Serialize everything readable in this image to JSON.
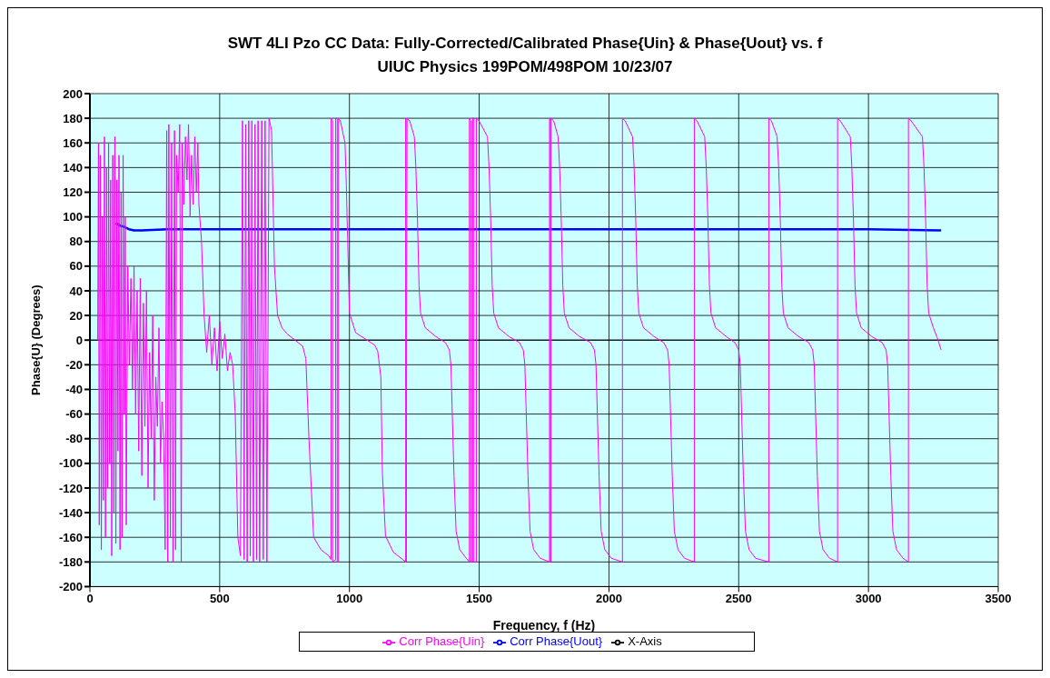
{
  "chart_data": {
    "type": "line",
    "title": "SWT 4LI Pzo CC Data: Fully-Corrected/Calibrated Phase{Uin} & Phase{Uout} vs. f",
    "subtitle": "UIUC Physics 199POM/498POM 10/23/07",
    "xlabel": "Frequency, f (Hz)",
    "ylabel": "Phase{U} (Degrees)",
    "xlim": [
      0,
      3500
    ],
    "ylim": [
      -200,
      200
    ],
    "xticks": [
      0,
      500,
      1000,
      1500,
      2000,
      2500,
      3000,
      3500
    ],
    "yticks": [
      -200,
      -180,
      -160,
      -140,
      -120,
      -100,
      -80,
      -60,
      -40,
      -20,
      0,
      20,
      40,
      60,
      80,
      100,
      120,
      140,
      160,
      180,
      200
    ],
    "grid": true,
    "legend": "bottom",
    "marker": "none",
    "line_style": "solid",
    "series": [
      {
        "name": "X-Axis",
        "color": "#000000",
        "x": [
          0,
          3500
        ],
        "values": [
          0,
          0
        ]
      },
      {
        "name": "Corr Phase{Uout}",
        "color": "#0000ff",
        "x": [
          100,
          115,
          130,
          150,
          170,
          200,
          300,
          500,
          1000,
          1500,
          2000,
          2500,
          2600,
          3000,
          3280
        ],
        "values": [
          95,
          93,
          92,
          90,
          89,
          89,
          90,
          90,
          90,
          90,
          90,
          90,
          90,
          90,
          89
        ]
      },
      {
        "name": "Corr Phase{Uin}",
        "color": "#ff00ff",
        "x": [
          30,
          33,
          36,
          40,
          44,
          48,
          52,
          56,
          60,
          64,
          68,
          72,
          76,
          80,
          84,
          88,
          92,
          96,
          100,
          104,
          108,
          112,
          116,
          120,
          124,
          128,
          132,
          136,
          140,
          146,
          152,
          158,
          164,
          170,
          176,
          182,
          188,
          194,
          200,
          206,
          212,
          218,
          224,
          230,
          236,
          242,
          248,
          254,
          260,
          266,
          272,
          278,
          284,
          290,
          296,
          300,
          304,
          310,
          315,
          320,
          326,
          330,
          334,
          340,
          346,
          352,
          356,
          362,
          368,
          374,
          380,
          386,
          392,
          398,
          404,
          410,
          416,
          420,
          430,
          440,
          450,
          460,
          470,
          480,
          490,
          500,
          510,
          520,
          530,
          540,
          550,
          560,
          570,
          580,
          588,
          594,
          600,
          606,
          612,
          618,
          624,
          630,
          636,
          642,
          648,
          654,
          662,
          668,
          675,
          682,
          690,
          700,
          711,
          723,
          740,
          760,
          790,
          820,
          832,
          844,
          862,
          890,
          920,
          929,
          929,
          935,
          935,
          947,
          947,
          953,
          953,
          958,
          958,
          965,
          983,
          988,
          1000,
          1024,
          1097,
          1109,
          1121,
          1127,
          1139,
          1169,
          1217,
          1217,
          1219,
          1222,
          1232,
          1250,
          1256,
          1262,
          1268,
          1274,
          1292,
          1332,
          1370,
          1385,
          1391,
          1395,
          1403,
          1411,
          1425,
          1450,
          1462,
          1462,
          1468,
          1468,
          1475,
          1475,
          1480,
          1480,
          1489,
          1489,
          1499,
          1532,
          1538,
          1544,
          1550,
          1556,
          1574,
          1614,
          1655,
          1670,
          1676,
          1680,
          1688,
          1696,
          1710,
          1735,
          1771,
          1771,
          1774,
          1774,
          1777,
          1777,
          1787,
          1804,
          1810,
          1816,
          1822,
          1828,
          1846,
          1886,
          1929,
          1944,
          1950,
          1954,
          1962,
          1970,
          1984,
          2009,
          2052,
          2052,
          2062,
          2091,
          2097,
          2103,
          2109,
          2115,
          2133,
          2173,
          2211,
          2226,
          2232,
          2236,
          2244,
          2252,
          2266,
          2291,
          2329,
          2329,
          2339,
          2369,
          2375,
          2381,
          2387,
          2393,
          2411,
          2451,
          2485,
          2500,
          2506,
          2510,
          2518,
          2526,
          2540,
          2565,
          2616,
          2616,
          2626,
          2648,
          2654,
          2660,
          2666,
          2672,
          2690,
          2730,
          2770,
          2785,
          2791,
          2795,
          2803,
          2811,
          2825,
          2850,
          2881,
          2881,
          2891,
          2930,
          2936,
          2942,
          2948,
          2954,
          2972,
          3012,
          3053,
          3068,
          3074,
          3078,
          3086,
          3094,
          3108,
          3133,
          3154,
          3154,
          3164,
          3208,
          3214,
          3220,
          3226,
          3232,
          3250,
          3265,
          3280
        ],
        "values": [
          0,
          160,
          -150,
          150,
          -170,
          100,
          -130,
          165,
          -160,
          140,
          -120,
          160,
          -100,
          130,
          -175,
          150,
          -140,
          165,
          -165,
          130,
          -90,
          150,
          -170,
          120,
          -160,
          150,
          -60,
          100,
          -150,
          60,
          -20,
          50,
          -40,
          60,
          -60,
          40,
          -90,
          50,
          -110,
          30,
          -70,
          40,
          -120,
          -10,
          -80,
          20,
          -130,
          -30,
          -70,
          10,
          -100,
          -50,
          -80,
          -170,
          170,
          -180,
          175,
          -160,
          160,
          -180,
          170,
          -170,
          150,
          120,
          175,
          -180,
          160,
          110,
          165,
          130,
          175,
          100,
          150,
          110,
          165,
          120,
          160,
          110,
          80,
          20,
          -10,
          20,
          -20,
          10,
          -25,
          15,
          -15,
          5,
          -25,
          -10,
          -20,
          -60,
          -160,
          -175,
          178,
          -178,
          175,
          -180,
          178,
          -175,
          178,
          -180,
          175,
          -178,
          178,
          -180,
          178,
          -178,
          178,
          -180,
          180,
          170,
          60,
          20,
          10,
          5,
          0,
          -5,
          -15,
          -80,
          -160,
          -170,
          -175,
          -178,
          180,
          178,
          -180,
          -178,
          180,
          180,
          -180,
          -180,
          180,
          178,
          160,
          126,
          22,
          6,
          -4,
          -9,
          -30,
          -108,
          -159,
          -172,
          -180,
          180,
          -180,
          180,
          178,
          165,
          140,
          100,
          45,
          22,
          10,
          3,
          -2,
          -8,
          -20,
          -50,
          -110,
          -155,
          -170,
          -177,
          -180,
          180,
          178,
          -180,
          -180,
          180,
          180,
          -180,
          -180,
          180,
          178,
          165,
          140,
          100,
          45,
          22,
          10,
          3,
          -2,
          -8,
          -20,
          -50,
          -110,
          -155,
          -170,
          -177,
          -180,
          180,
          180,
          -180,
          -180,
          180,
          178,
          165,
          140,
          100,
          45,
          22,
          10,
          3,
          -2,
          -8,
          -20,
          -50,
          -110,
          -155,
          -170,
          -177,
          -180,
          180,
          178,
          165,
          140,
          100,
          45,
          22,
          10,
          3,
          -2,
          -8,
          -20,
          -50,
          -110,
          -155,
          -170,
          -177,
          -180,
          180,
          178,
          165,
          140,
          100,
          45,
          22,
          10,
          3,
          -2,
          -8,
          -20,
          -50,
          -110,
          -155,
          -170,
          -177,
          -180,
          180,
          178,
          165,
          140,
          100,
          45,
          22,
          10,
          3,
          -2,
          -8,
          -20,
          -50,
          -110,
          -155,
          -170,
          -177,
          -180,
          180,
          178,
          165,
          140,
          100,
          45,
          22,
          10,
          3,
          -2,
          -8,
          -20,
          -50,
          -110,
          -155,
          -170,
          -177,
          -180,
          180,
          178,
          165,
          140,
          100,
          45,
          22,
          10,
          2,
          -8
        ]
      }
    ]
  }
}
